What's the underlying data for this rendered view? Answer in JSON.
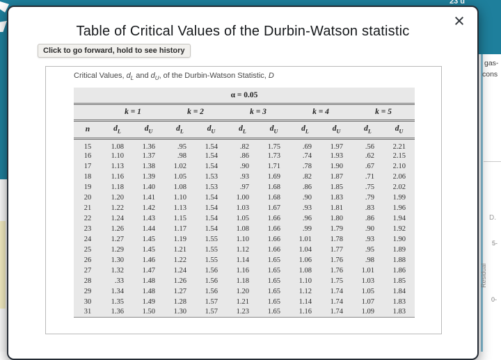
{
  "background": {
    "header_fragment": "23 u",
    "right_panel": {
      "word1": "gas-",
      "word2": "cons",
      "legend_fragment": "D.",
      "tick_top": "5-",
      "axis_label": "Residual",
      "tick_bottom": "0-"
    },
    "teal_color": "#1e7f9c"
  },
  "modal": {
    "title": "Table of Critical Values of the Durbin-Watson statistic",
    "close_glyph": "×",
    "tooltip": "Click to go forward, hold to see history"
  },
  "table": {
    "caption": {
      "prefix": "Critical Values, ",
      "d1": "d",
      "sub1": "L",
      "and": " and ",
      "d2": "d",
      "sub2": "U",
      "suffix": ", of the Durbin-Watson Statistic, ",
      "stat": "D"
    },
    "alpha_header": "α = 0.05",
    "n_header": "n",
    "k_headers": [
      "k = 1",
      "k = 2",
      "k = 3",
      "k = 4",
      "k = 5"
    ],
    "sub_headers": [
      {
        "base": "d",
        "sub": "L"
      },
      {
        "base": "d",
        "sub": "U"
      },
      {
        "base": "d",
        "sub": "L"
      },
      {
        "base": "d",
        "sub": "U"
      },
      {
        "base": "d",
        "sub": "L"
      },
      {
        "base": "d",
        "sub": "U"
      },
      {
        "base": "d",
        "sub": "L"
      },
      {
        "base": "d",
        "sub": "U"
      },
      {
        "base": "d",
        "sub": "L"
      },
      {
        "base": "d",
        "sub": "U"
      }
    ],
    "rows": [
      {
        "n": "15",
        "values": [
          "1.08",
          "1.36",
          ".95",
          "1.54",
          ".82",
          "1.75",
          ".69",
          "1.97",
          ".56",
          "2.21"
        ]
      },
      {
        "n": "16",
        "values": [
          "1.10",
          "1.37",
          ".98",
          "1.54",
          ".86",
          "1.73",
          ".74",
          "1.93",
          ".62",
          "2.15"
        ]
      },
      {
        "n": "17",
        "values": [
          "1.13",
          "1.38",
          "1.02",
          "1.54",
          ".90",
          "1.71",
          ".78",
          "1.90",
          ".67",
          "2.10"
        ]
      },
      {
        "n": "18",
        "values": [
          "1.16",
          "1.39",
          "1.05",
          "1.53",
          ".93",
          "1.69",
          ".82",
          "1.87",
          ".71",
          "2.06"
        ]
      },
      {
        "n": "19",
        "values": [
          "1.18",
          "1.40",
          "1.08",
          "1.53",
          ".97",
          "1.68",
          ".86",
          "1.85",
          ".75",
          "2.02"
        ]
      },
      {
        "n": "20",
        "values": [
          "1.20",
          "1.41",
          "1.10",
          "1.54",
          "1.00",
          "1.68",
          ".90",
          "1.83",
          ".79",
          "1.99"
        ]
      },
      {
        "n": "21",
        "values": [
          "1.22",
          "1.42",
          "1.13",
          "1.54",
          "1.03",
          "1.67",
          ".93",
          "1.81",
          ".83",
          "1.96"
        ]
      },
      {
        "n": "22",
        "values": [
          "1.24",
          "1.43",
          "1.15",
          "1.54",
          "1.05",
          "1.66",
          ".96",
          "1.80",
          ".86",
          "1.94"
        ]
      },
      {
        "n": "23",
        "values": [
          "1.26",
          "1.44",
          "1.17",
          "1.54",
          "1.08",
          "1.66",
          ".99",
          "1.79",
          ".90",
          "1.92"
        ]
      },
      {
        "n": "24",
        "values": [
          "1.27",
          "1.45",
          "1.19",
          "1.55",
          "1.10",
          "1.66",
          "1.01",
          "1.78",
          ".93",
          "1.90"
        ]
      },
      {
        "n": "25",
        "values": [
          "1.29",
          "1.45",
          "1.21",
          "1.55",
          "1.12",
          "1.66",
          "1.04",
          "1.77",
          ".95",
          "1.89"
        ]
      },
      {
        "n": "26",
        "values": [
          "1.30",
          "1.46",
          "1.22",
          "1.55",
          "1.14",
          "1.65",
          "1.06",
          "1.76",
          ".98",
          "1.88"
        ]
      },
      {
        "n": "27",
        "values": [
          "1.32",
          "1.47",
          "1.24",
          "1.56",
          "1.16",
          "1.65",
          "1.08",
          "1.76",
          "1.01",
          "1.86"
        ]
      },
      {
        "n": "28",
        "values": [
          ".33",
          "1.48",
          "1.26",
          "1.56",
          "1.18",
          "1.65",
          "1.10",
          "1.75",
          "1.03",
          "1.85"
        ]
      },
      {
        "n": "29",
        "values": [
          "1.34",
          "1.48",
          "1.27",
          "1.56",
          "1.20",
          "1.65",
          "1.12",
          "1.74",
          "1.05",
          "1.84"
        ]
      },
      {
        "n": "30",
        "values": [
          "1.35",
          "1.49",
          "1.28",
          "1.57",
          "1.21",
          "1.65",
          "1.14",
          "1.74",
          "1.07",
          "1.83"
        ]
      },
      {
        "n": "31",
        "values": [
          "1.36",
          "1.50",
          "1.30",
          "1.57",
          "1.23",
          "1.65",
          "1.16",
          "1.74",
          "1.09",
          "1.83"
        ]
      }
    ]
  }
}
